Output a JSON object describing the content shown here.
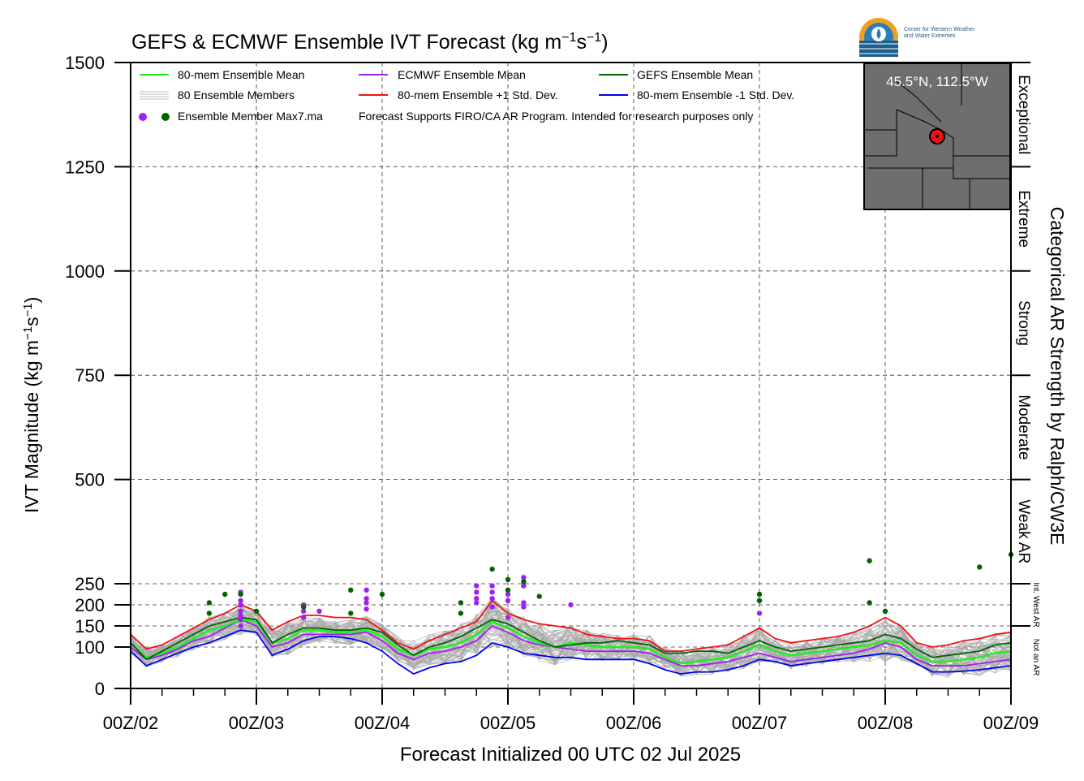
{
  "chart_data": {
    "type": "line",
    "title": "GEFS & ECMWF Ensemble IVT Forecast (kg m",
    "title_sup1": "−1",
    "title_mid": "s",
    "title_sup2": "−1",
    "title_end": ")",
    "ylabel": "IVT Magnitude (kg m",
    "ylabel_sup1": "−1",
    "ylabel_mid": "s",
    "ylabel_sup2": "−1",
    "ylabel_end": ")",
    "xlabel": "Forecast Initialized 00 UTC 02 Jul 2025",
    "right_label": "Categorical AR Strength by Ralph/CW3E",
    "ylim": [
      0,
      1500
    ],
    "xlim": [
      0,
      168
    ],
    "y_ticks": [
      0,
      100,
      150,
      200,
      250,
      500,
      750,
      1000,
      1250,
      1500
    ],
    "x_ticks": [
      {
        "x": 0,
        "label": "00Z/02"
      },
      {
        "x": 24,
        "label": "00Z/03"
      },
      {
        "x": 48,
        "label": "00Z/04"
      },
      {
        "x": 72,
        "label": "00Z/05"
      },
      {
        "x": 96,
        "label": "00Z/06"
      },
      {
        "x": 120,
        "label": "00Z/07"
      },
      {
        "x": 144,
        "label": "00Z/08"
      },
      {
        "x": 168,
        "label": "00Z/09"
      }
    ],
    "categories": [
      {
        "label": "Exceptional",
        "from": 1250,
        "to": 1500
      },
      {
        "label": "Extreme",
        "from": 1000,
        "to": 1250
      },
      {
        "label": "Strong",
        "from": 750,
        "to": 1000
      },
      {
        "label": "Moderate",
        "from": 500,
        "to": 750
      },
      {
        "label": "Weak AR",
        "from": 250,
        "to": 500
      },
      {
        "label": "Int. West AR",
        "from": 150,
        "to": 250
      },
      {
        "label": "Not an AR",
        "from": 0,
        "to": 150
      }
    ],
    "legend": {
      "mean80": "80-mem Ensemble Mean",
      "members": "80 Ensemble Members",
      "max": "Ensemble Member Max7.ma",
      "ecmwf_mean": "ECMWF Ensemble Mean",
      "plus1": "80-mem Ensemble +1 Std. Dev.",
      "note": "Forecast Supports FIRO/CA AR Program. Intended for research purposes only",
      "gefs_mean": "GEFS Ensemble Mean",
      "minus1": "80-mem Ensemble -1 Std. Dev."
    },
    "colors": {
      "mean80": "#22ee22",
      "ecmwf": "#a020f0",
      "gefs": "#006400",
      "plus1": "#ee1111",
      "minus1": "#0000ee",
      "members": "#aaaaaa"
    },
    "x": [
      0,
      3,
      6,
      9,
      12,
      15,
      18,
      21,
      24,
      27,
      30,
      33,
      36,
      39,
      42,
      45,
      48,
      51,
      54,
      57,
      60,
      63,
      66,
      69,
      72,
      75,
      78,
      81,
      84,
      87,
      90,
      93,
      96,
      99,
      102,
      105,
      108,
      111,
      114,
      117,
      120,
      123,
      126,
      129,
      132,
      135,
      138,
      141,
      144,
      147,
      150,
      153,
      156,
      159,
      162,
      165,
      168
    ],
    "series": [
      {
        "key": "plus1",
        "name": "80-mem Ensemble +1 Std. Dev.",
        "values": [
          130,
          95,
          105,
          125,
          145,
          165,
          180,
          200,
          185,
          140,
          160,
          175,
          175,
          170,
          170,
          165,
          140,
          110,
          95,
          115,
          130,
          145,
          160,
          210,
          180,
          165,
          155,
          150,
          145,
          130,
          125,
          120,
          120,
          115,
          90,
          90,
          95,
          100,
          105,
          125,
          145,
          120,
          110,
          115,
          120,
          125,
          135,
          150,
          170,
          150,
          110,
          100,
          105,
          115,
          120,
          130,
          135
        ]
      },
      {
        "key": "gefs",
        "name": "GEFS Ensemble Mean",
        "values": [
          110,
          70,
          90,
          110,
          130,
          150,
          160,
          170,
          165,
          110,
          130,
          145,
          145,
          140,
          140,
          145,
          135,
          105,
          80,
          100,
          110,
          125,
          145,
          165,
          155,
          135,
          115,
          100,
          105,
          110,
          110,
          115,
          110,
          105,
          85,
          85,
          90,
          90,
          85,
          100,
          115,
          100,
          90,
          95,
          100,
          105,
          110,
          115,
          130,
          120,
          95,
          75,
          80,
          85,
          90,
          105,
          110
        ]
      },
      {
        "key": "mean80",
        "name": "80-mem Ensemble Mean",
        "values": [
          110,
          75,
          85,
          100,
          120,
          140,
          150,
          165,
          160,
          110,
          120,
          140,
          140,
          135,
          135,
          140,
          125,
          95,
          80,
          95,
          100,
          110,
          130,
          160,
          145,
          125,
          110,
          100,
          110,
          105,
          100,
          100,
          100,
          95,
          75,
          60,
          65,
          70,
          75,
          90,
          105,
          90,
          80,
          85,
          90,
          95,
          100,
          105,
          115,
          110,
          80,
          65,
          65,
          70,
          75,
          85,
          90
        ]
      },
      {
        "key": "ecmwf",
        "name": "ECMWF Ensemble Mean",
        "values": [
          100,
          70,
          80,
          95,
          115,
          125,
          145,
          165,
          150,
          100,
          110,
          130,
          130,
          130,
          130,
          135,
          115,
          85,
          70,
          85,
          90,
          100,
          115,
          150,
          135,
          115,
          105,
          100,
          95,
          90,
          90,
          90,
          90,
          85,
          70,
          55,
          55,
          60,
          65,
          75,
          85,
          75,
          65,
          70,
          75,
          80,
          85,
          95,
          110,
          100,
          70,
          55,
          55,
          55,
          60,
          65,
          70
        ]
      },
      {
        "key": "minus1",
        "name": "80-mem Ensemble -1 Std. Dev.",
        "values": [
          90,
          55,
          70,
          85,
          100,
          110,
          125,
          140,
          135,
          80,
          95,
          115,
          125,
          125,
          120,
          110,
          90,
          60,
          35,
          50,
          60,
          65,
          80,
          110,
          100,
          85,
          80,
          75,
          75,
          70,
          70,
          70,
          70,
          60,
          45,
          35,
          40,
          40,
          45,
          55,
          70,
          65,
          55,
          60,
          65,
          70,
          75,
          80,
          85,
          80,
          60,
          40,
          40,
          42,
          45,
          50,
          55
        ]
      }
    ],
    "max_points": {
      "gefs": [
        [
          15,
          180
        ],
        [
          15,
          205
        ],
        [
          18,
          225
        ],
        [
          21,
          225
        ],
        [
          24,
          185
        ],
        [
          33,
          195
        ],
        [
          42,
          180
        ],
        [
          42,
          235
        ],
        [
          48,
          225
        ],
        [
          63,
          180
        ],
        [
          63,
          205
        ],
        [
          69,
          285
        ],
        [
          72,
          235
        ],
        [
          72,
          260
        ],
        [
          75,
          255
        ],
        [
          78,
          220
        ],
        [
          120,
          210
        ],
        [
          120,
          225
        ],
        [
          141,
          305
        ],
        [
          141,
          205
        ],
        [
          144,
          185
        ],
        [
          162,
          290
        ],
        [
          168,
          320
        ]
      ],
      "ecmwf": [
        [
          21,
          150
        ],
        [
          21,
          165
        ],
        [
          21,
          175
        ],
        [
          21,
          185
        ],
        [
          21,
          200
        ],
        [
          21,
          210
        ],
        [
          21,
          230
        ],
        [
          33,
          170
        ],
        [
          33,
          185
        ],
        [
          33,
          200
        ],
        [
          36,
          185
        ],
        [
          45,
          190
        ],
        [
          45,
          205
        ],
        [
          45,
          215
        ],
        [
          45,
          235
        ],
        [
          66,
          205
        ],
        [
          66,
          215
        ],
        [
          66,
          230
        ],
        [
          66,
          245
        ],
        [
          69,
          195
        ],
        [
          69,
          215
        ],
        [
          69,
          230
        ],
        [
          69,
          245
        ],
        [
          72,
          170
        ],
        [
          72,
          210
        ],
        [
          72,
          225
        ],
        [
          75,
          195
        ],
        [
          75,
          205
        ],
        [
          75,
          245
        ],
        [
          75,
          265
        ],
        [
          84,
          200
        ],
        [
          120,
          180
        ]
      ]
    }
  },
  "map": {
    "coord": "45.5°N, 112.5°W"
  },
  "logo": {
    "line1": "Center for Western Weather",
    "line2": "and Water Extremes"
  }
}
